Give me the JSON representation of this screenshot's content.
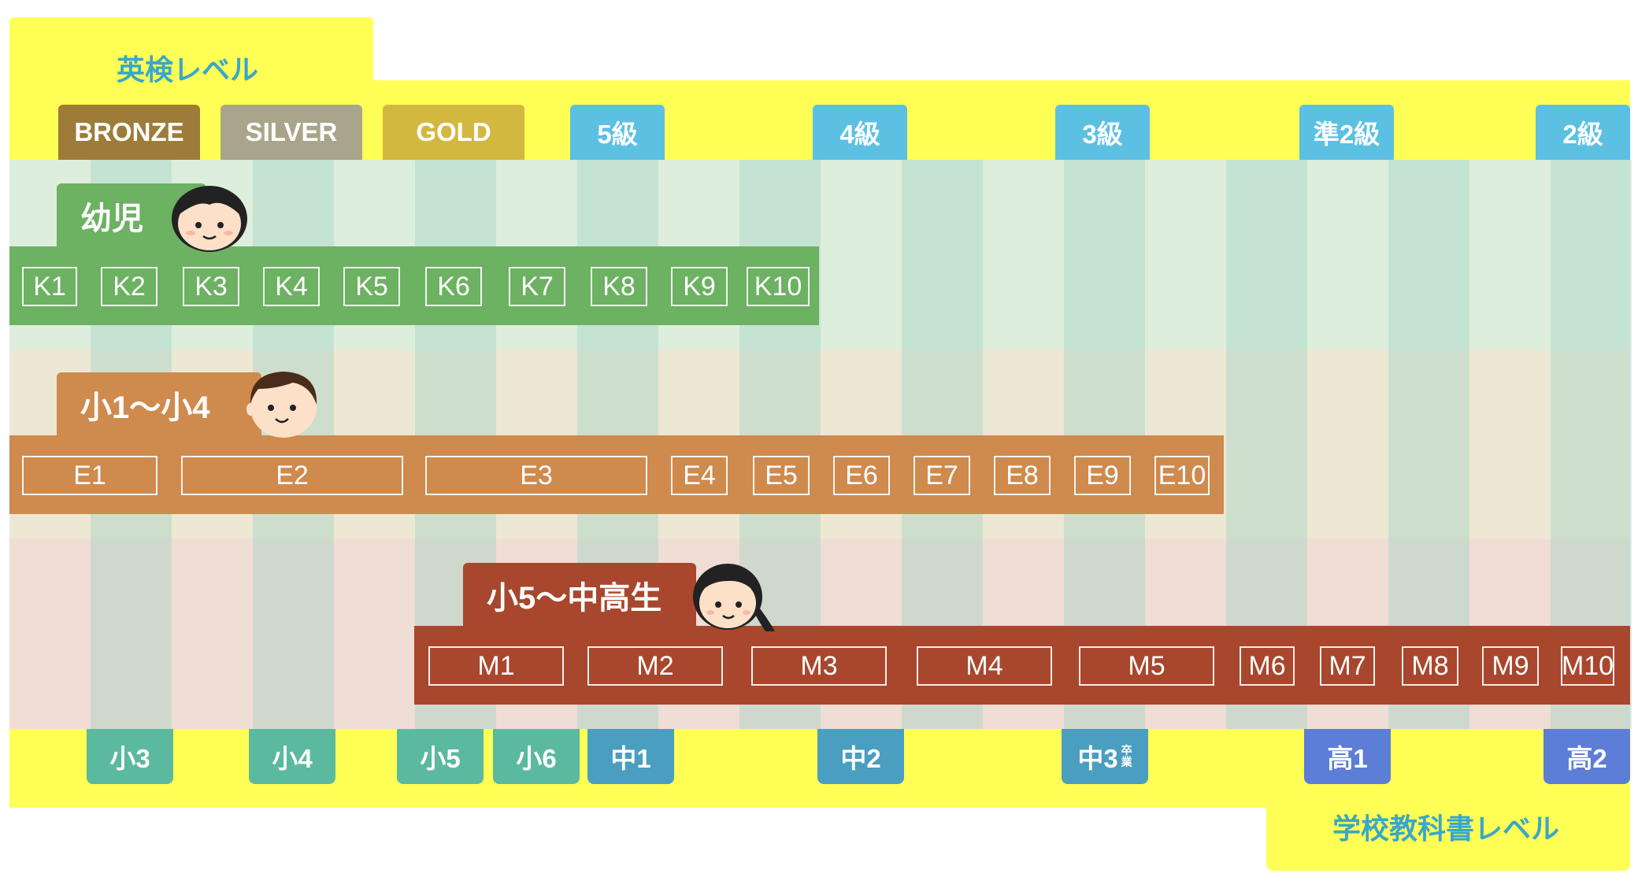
{
  "eiken_title": "英検レベル",
  "textbook_title": "学校教科書レベル",
  "eiken_levels": [
    {
      "label": "BRONZE",
      "color": "#9d7c3a"
    },
    {
      "label": "SILVER",
      "color": "#a8a58a"
    },
    {
      "label": "GOLD",
      "color": "#d3b83f"
    },
    {
      "label": "5級",
      "color": "#5cc0e3"
    },
    {
      "label": "4級",
      "color": "#5cc0e3"
    },
    {
      "label": "3級",
      "color": "#5cc0e3"
    },
    {
      "label": "準2級",
      "color": "#5cc0e3"
    },
    {
      "label": "2級",
      "color": "#5cc0e3"
    }
  ],
  "categories": [
    {
      "name": "幼児",
      "color": "#6db163",
      "levels": [
        "K1",
        "K2",
        "K3",
        "K4",
        "K5",
        "K6",
        "K7",
        "K8",
        "K9",
        "K10"
      ]
    },
    {
      "name": "小1〜小4",
      "color": "#cf8a4e",
      "levels": [
        "E1",
        "E2",
        "E3",
        "E4",
        "E5",
        "E6",
        "E7",
        "E8",
        "E9",
        "E10"
      ]
    },
    {
      "name": "小5〜中高生",
      "color": "#a8472d",
      "levels": [
        "M1",
        "M2",
        "M3",
        "M4",
        "M5",
        "M6",
        "M7",
        "M8",
        "M9",
        "M10"
      ]
    }
  ],
  "school_grades": [
    {
      "label": "小3",
      "color": "#5bb9a0"
    },
    {
      "label": "小4",
      "color": "#5bb9a0"
    },
    {
      "label": "小5",
      "color": "#5bb9a0"
    },
    {
      "label": "小6",
      "color": "#5bb9a0"
    },
    {
      "label": "中1",
      "color": "#4a9ec0"
    },
    {
      "label": "中2",
      "color": "#4a9ec0"
    },
    {
      "label": "中3",
      "color": "#4a9ec0",
      "note": "卒業"
    },
    {
      "label": "高1",
      "color": "#5d7ed6"
    },
    {
      "label": "高2",
      "color": "#5d7ed6"
    }
  ]
}
